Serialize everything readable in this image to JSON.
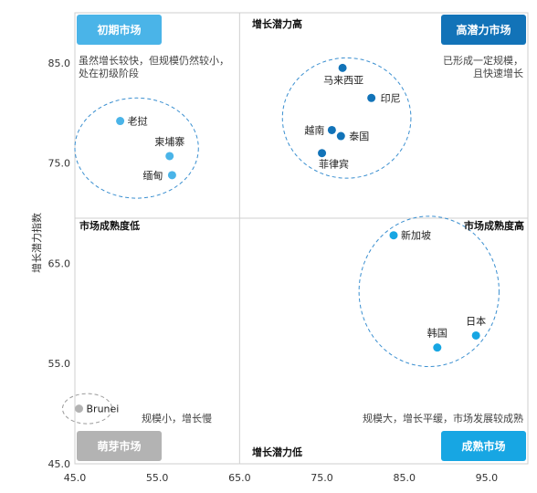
{
  "chart_data": {
    "type": "scatter",
    "ylabel": "增长潜力指数",
    "xlabel": "",
    "xlim": [
      45,
      100
    ],
    "ylim": [
      45,
      90
    ],
    "xticks": [
      45,
      55,
      65,
      75,
      85,
      95
    ],
    "yticks": [
      45,
      55,
      65,
      75,
      85
    ],
    "x_tick_labels": [
      "45.0",
      "55.0",
      "65.0",
      "75.0",
      "85.0",
      "95.0"
    ],
    "y_tick_labels": [
      "45.0",
      "55.0",
      "65.0",
      "75.0",
      "85.0"
    ],
    "divider": {
      "x": 65,
      "y": 69.5
    },
    "colors": {
      "nascent": "#b3b3b3",
      "initial": "#4ab4e8",
      "high": "#1273b8",
      "mature": "#17a6e3",
      "ring": "#3a8fd0"
    },
    "points": [
      {
        "label": "老挝",
        "x": 50.5,
        "y": 79.2,
        "group": "initial"
      },
      {
        "label": "柬埔寨",
        "x": 56.5,
        "y": 75.7,
        "group": "initial"
      },
      {
        "label": "缅甸",
        "x": 56.8,
        "y": 73.8,
        "group": "initial"
      },
      {
        "label": "马来西亚",
        "x": 77.5,
        "y": 84.5,
        "group": "high"
      },
      {
        "label": "印尼",
        "x": 81.0,
        "y": 81.5,
        "group": "high"
      },
      {
        "label": "越南",
        "x": 76.2,
        "y": 78.3,
        "group": "high"
      },
      {
        "label": "泰国",
        "x": 77.3,
        "y": 77.7,
        "group": "high"
      },
      {
        "label": "菲律宾",
        "x": 75.0,
        "y": 76.0,
        "group": "high"
      },
      {
        "label": "新加坡",
        "x": 83.7,
        "y": 67.8,
        "group": "mature"
      },
      {
        "label": "韩国",
        "x": 89.0,
        "y": 56.6,
        "group": "mature"
      },
      {
        "label": "日本",
        "x": 93.7,
        "y": 57.8,
        "group": "mature"
      },
      {
        "label": "Brunei",
        "x": 45.5,
        "y": 50.5,
        "group": "nascent"
      }
    ],
    "clusters": [
      {
        "cx": 52.5,
        "cy": 76.5,
        "rx": 7.5,
        "ry": 5.0
      },
      {
        "cx": 78.0,
        "cy": 79.5,
        "rx": 7.8,
        "ry": 6.0
      },
      {
        "cx": 88.0,
        "cy": 62.2,
        "rx": 8.5,
        "ry": 7.5
      },
      {
        "cx": 46.5,
        "cy": 50.5,
        "rx": 3.0,
        "ry": 1.5
      }
    ],
    "quadrants": {
      "top_left": {
        "badge": "初期市场",
        "desc_lines": [
          "虽然增长较快，但规模仍然较小，",
          "处在初级阶段"
        ]
      },
      "top_right": {
        "badge": "高潜力市场",
        "desc_lines": [
          "已形成一定规模，",
          "且快速增长"
        ]
      },
      "bottom_left": {
        "badge": "萌芽市场",
        "desc": "规模小，增长慢"
      },
      "bottom_right": {
        "badge": "成熟市场",
        "desc": "规模大，增长平缓，市场发展较成熟"
      }
    },
    "axis_labels": {
      "top": "增长潜力高",
      "bottom": "增长潜力低",
      "left": "市场成熟度低",
      "right": "市场成熟度高"
    }
  }
}
